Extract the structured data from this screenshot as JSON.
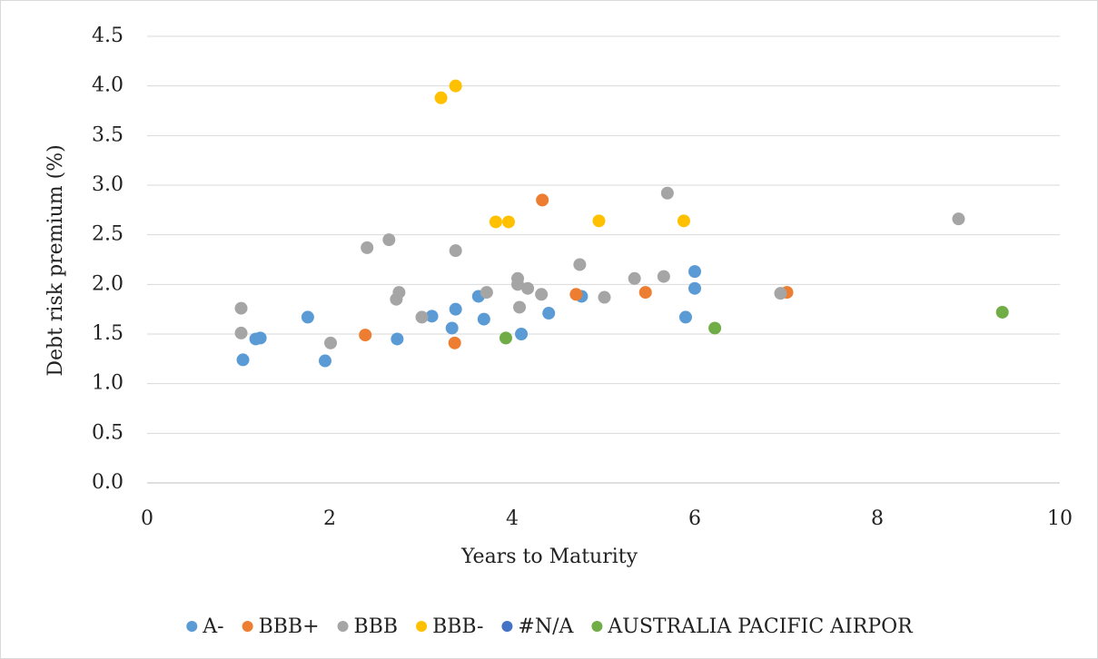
{
  "chart_data": {
    "type": "scatter",
    "xlabel": "Years to Maturity",
    "ylabel": "Debt risk premium (%)",
    "xlim": [
      0,
      10
    ],
    "xticks": [
      0,
      2,
      4,
      6,
      8,
      10
    ],
    "ylim": [
      0,
      4.5
    ],
    "yticks": [
      {
        "value": 0,
        "label": "0.0"
      },
      0.5,
      {
        "value": 1,
        "label": "1.0"
      },
      1.5,
      {
        "value": 2,
        "label": "2.0"
      },
      2.5,
      {
        "value": 3,
        "label": "3.0"
      },
      3.5,
      {
        "value": 4,
        "label": "4.0"
      },
      4.5
    ],
    "grid": true,
    "legend": "bottom",
    "series": [
      {
        "name": "A-",
        "color": "#5b9bd5",
        "x": [
          1.05,
          1.19,
          1.24,
          1.76,
          1.95,
          2.74,
          3.12,
          3.34,
          3.38,
          3.63,
          3.69,
          4.1,
          4.4,
          4.76,
          5.9,
          6.0,
          6.0
        ],
        "y": [
          1.24,
          1.45,
          1.46,
          1.67,
          1.23,
          1.45,
          1.68,
          1.56,
          1.75,
          1.88,
          1.65,
          1.5,
          1.71,
          1.88,
          1.67,
          1.96,
          2.13
        ]
      },
      {
        "name": "BBB+",
        "color": "#ed7d31",
        "x": [
          2.39,
          3.37,
          4.33,
          4.7,
          5.46,
          7.01
        ],
        "y": [
          1.49,
          1.41,
          2.85,
          1.9,
          1.92,
          1.92
        ]
      },
      {
        "name": "BBB",
        "color": "#a5a5a5",
        "x": [
          1.03,
          1.03,
          2.01,
          2.41,
          2.65,
          2.73,
          2.76,
          3.01,
          3.38,
          3.72,
          4.06,
          4.06,
          4.08,
          4.17,
          4.32,
          4.74,
          5.01,
          5.34,
          5.66,
          5.7,
          6.94,
          8.89
        ],
        "y": [
          1.76,
          1.51,
          1.41,
          2.37,
          2.45,
          1.85,
          1.92,
          1.67,
          2.34,
          1.92,
          2.06,
          2.0,
          1.77,
          1.96,
          1.9,
          2.2,
          1.87,
          2.06,
          2.08,
          2.92,
          1.91,
          2.66
        ]
      },
      {
        "name": "BBB-",
        "color": "#ffc000",
        "x": [
          3.22,
          3.38,
          3.82,
          3.96,
          4.95,
          5.88
        ],
        "y": [
          3.88,
          4.0,
          2.63,
          2.63,
          2.64,
          2.64
        ]
      },
      {
        "name": "#N/A",
        "color": "#4472c4",
        "x": [],
        "y": []
      },
      {
        "name": "AUSTRALIA PACIFIC AIRPOR",
        "color": "#70ad47",
        "x": [
          3.93,
          6.22,
          9.37
        ],
        "y": [
          1.46,
          1.56,
          1.72
        ]
      }
    ]
  }
}
